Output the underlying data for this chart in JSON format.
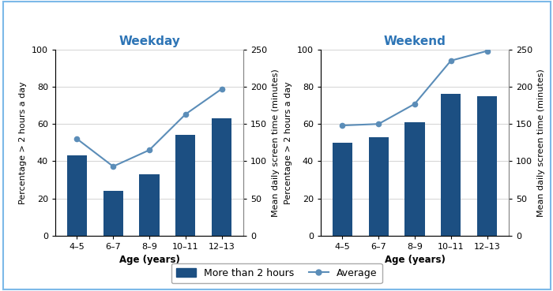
{
  "age_labels": [
    "4–5",
    "6–7",
    "8–9",
    "10–11",
    "12–13"
  ],
  "weekday_bars": [
    43,
    24,
    33,
    54,
    63
  ],
  "weekday_line": [
    130,
    93,
    115,
    163,
    197
  ],
  "weekend_bars": [
    50,
    53,
    61,
    76,
    75
  ],
  "weekend_line": [
    148,
    150,
    177,
    235,
    248
  ],
  "bar_color": "#1c4f82",
  "line_color": "#5b8db8",
  "title_weekday": "Weekday",
  "title_weekend": "Weekend",
  "title_color": "#2e75b6",
  "ylabel_left": "Percentage > 2 hours a day",
  "ylabel_right": "Mean daily screen time (minutes)",
  "xlabel": "Age (years)",
  "ylim_left": [
    0,
    100
  ],
  "ylim_right": [
    0,
    250
  ],
  "yticks_left": [
    0,
    20,
    40,
    60,
    80,
    100
  ],
  "yticks_right": [
    0,
    50,
    100,
    150,
    200,
    250
  ],
  "legend_bar_label": "More than 2 hours",
  "legend_line_label": "Average",
  "figure_background": "#ffffff",
  "border_color": "#7cb9e8"
}
